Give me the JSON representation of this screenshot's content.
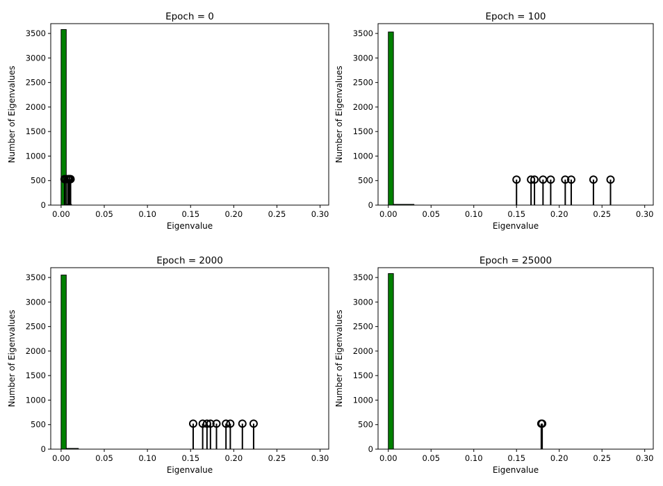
{
  "chart_data": [
    {
      "type": "bar",
      "title": "Epoch = 0",
      "xlabel": "Eigenvalue",
      "ylabel": "Number of Eigenvalues",
      "xlim": [
        -0.012,
        0.31
      ],
      "ylim": [
        0,
        3700
      ],
      "xticks": [
        0.0,
        0.05,
        0.1,
        0.15,
        0.2,
        0.25,
        0.3
      ],
      "xtick_labels": [
        "0.00",
        "0.05",
        "0.10",
        "0.15",
        "0.20",
        "0.25",
        "0.30"
      ],
      "yticks": [
        0,
        500,
        1000,
        1500,
        2000,
        2500,
        3000,
        3500
      ],
      "ytick_labels": [
        "0",
        "500",
        "1000",
        "1500",
        "2000",
        "2500",
        "3000",
        "3500"
      ],
      "histogram": {
        "color": "#008000",
        "bins": [
          {
            "x0": 0.0,
            "x1": 0.006,
            "count": 3580
          },
          {
            "x0": 0.006,
            "x1": 0.012,
            "count": 15
          }
        ]
      },
      "outliers": {
        "stem_height": 530,
        "x": [
          0.004,
          0.006,
          0.008,
          0.009,
          0.01,
          0.011
        ]
      }
    },
    {
      "type": "bar",
      "title": "Epoch = 100",
      "xlabel": "Eigenvalue",
      "ylabel": "Number of Eigenvalues",
      "xlim": [
        -0.012,
        0.31
      ],
      "ylim": [
        0,
        3700
      ],
      "xticks": [
        0.0,
        0.05,
        0.1,
        0.15,
        0.2,
        0.25,
        0.3
      ],
      "xtick_labels": [
        "0.00",
        "0.05",
        "0.10",
        "0.15",
        "0.20",
        "0.25",
        "0.30"
      ],
      "yticks": [
        0,
        500,
        1000,
        1500,
        2000,
        2500,
        3000,
        3500
      ],
      "ytick_labels": [
        "0",
        "500",
        "1000",
        "1500",
        "2000",
        "2500",
        "3000",
        "3500"
      ],
      "histogram": {
        "color": "#008000",
        "bins": [
          {
            "x0": 0.0,
            "x1": 0.006,
            "count": 3530
          },
          {
            "x0": 0.006,
            "x1": 0.03,
            "count": 15
          }
        ]
      },
      "outliers": {
        "stem_height": 520,
        "x": [
          0.15,
          0.167,
          0.171,
          0.181,
          0.19,
          0.207,
          0.214,
          0.24,
          0.26
        ]
      }
    },
    {
      "type": "bar",
      "title": "Epoch = 2000",
      "xlabel": "Eigenvalue",
      "ylabel": "Number of Eigenvalues",
      "xlim": [
        -0.012,
        0.31
      ],
      "ylim": [
        0,
        3700
      ],
      "xticks": [
        0.0,
        0.05,
        0.1,
        0.15,
        0.2,
        0.25,
        0.3
      ],
      "xtick_labels": [
        "0.00",
        "0.05",
        "0.10",
        "0.15",
        "0.20",
        "0.25",
        "0.30"
      ],
      "yticks": [
        0,
        500,
        1000,
        1500,
        2000,
        2500,
        3000,
        3500
      ],
      "ytick_labels": [
        "0",
        "500",
        "1000",
        "1500",
        "2000",
        "2500",
        "3000",
        "3500"
      ],
      "histogram": {
        "color": "#008000",
        "bins": [
          {
            "x0": 0.0,
            "x1": 0.006,
            "count": 3550
          },
          {
            "x0": 0.006,
            "x1": 0.02,
            "count": 15
          }
        ]
      },
      "outliers": {
        "stem_height": 520,
        "x": [
          0.153,
          0.164,
          0.169,
          0.173,
          0.18,
          0.191,
          0.196,
          0.21,
          0.223
        ]
      }
    },
    {
      "type": "bar",
      "title": "Epoch = 25000",
      "xlabel": "Eigenvalue",
      "ylabel": "Number of Eigenvalues",
      "xlim": [
        -0.012,
        0.31
      ],
      "ylim": [
        0,
        3700
      ],
      "xticks": [
        0.0,
        0.05,
        0.1,
        0.15,
        0.2,
        0.25,
        0.3
      ],
      "xtick_labels": [
        "0.00",
        "0.05",
        "0.10",
        "0.15",
        "0.20",
        "0.25",
        "0.30"
      ],
      "yticks": [
        0,
        500,
        1000,
        1500,
        2000,
        2500,
        3000,
        3500
      ],
      "ytick_labels": [
        "0",
        "500",
        "1000",
        "1500",
        "2000",
        "2500",
        "3000",
        "3500"
      ],
      "histogram": {
        "color": "#008000",
        "bins": [
          {
            "x0": 0.0,
            "x1": 0.006,
            "count": 3580
          }
        ]
      },
      "outliers": {
        "stem_height": 520,
        "x": [
          0.179,
          0.18
        ]
      }
    }
  ]
}
